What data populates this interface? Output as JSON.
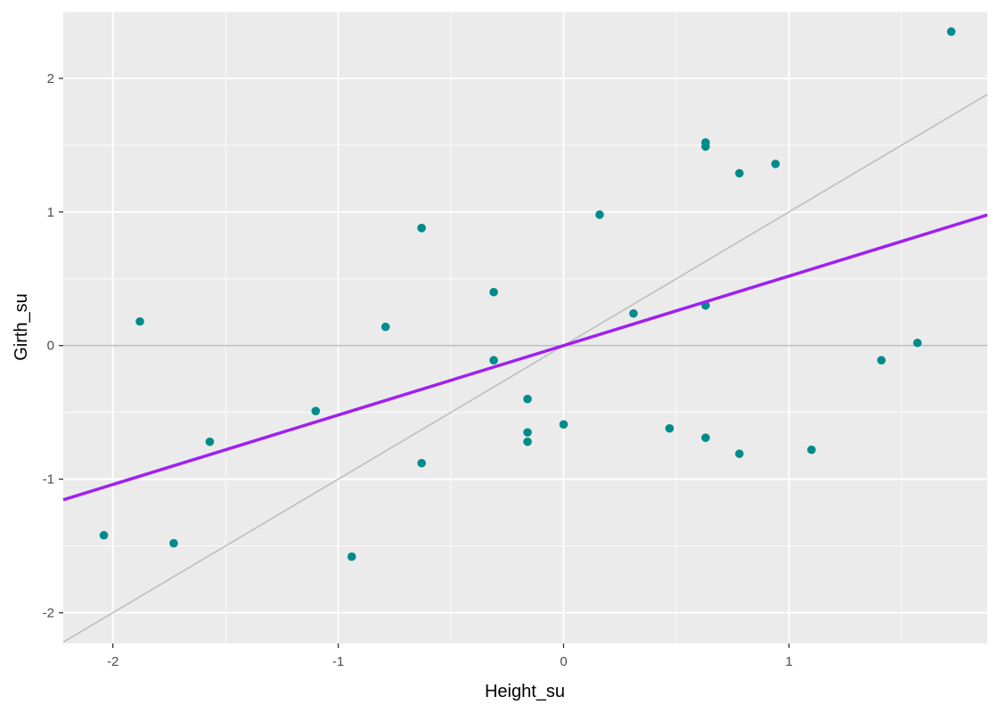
{
  "chart_data": {
    "type": "scatter",
    "xlabel": "Height_su",
    "ylabel": "Girth_su",
    "xlim": [
      -2.22,
      1.88
    ],
    "ylim": [
      -2.23,
      2.5
    ],
    "x_ticks": [
      -2,
      -1,
      0,
      1
    ],
    "x_tick_labels": [
      "-2",
      "-1",
      "0",
      "1"
    ],
    "y_ticks": [
      -2,
      -1,
      0,
      1,
      2
    ],
    "y_tick_labels": [
      "-2",
      "-1",
      "0",
      "1",
      "2"
    ],
    "grid": true,
    "points": [
      {
        "x": -2.04,
        "y": -1.42
      },
      {
        "x": -1.88,
        "y": 0.18
      },
      {
        "x": -1.73,
        "y": -1.48
      },
      {
        "x": -1.57,
        "y": -0.72
      },
      {
        "x": -1.1,
        "y": -0.49
      },
      {
        "x": -0.94,
        "y": -1.58
      },
      {
        "x": -0.79,
        "y": 0.14
      },
      {
        "x": -0.63,
        "y": 0.88
      },
      {
        "x": -0.63,
        "y": -0.88
      },
      {
        "x": -0.31,
        "y": 0.4
      },
      {
        "x": -0.31,
        "y": -0.11
      },
      {
        "x": -0.16,
        "y": -0.4
      },
      {
        "x": -0.16,
        "y": -0.65
      },
      {
        "x": -0.16,
        "y": -0.72
      },
      {
        "x": 0.0,
        "y": -0.59
      },
      {
        "x": 0.16,
        "y": 0.98
      },
      {
        "x": 0.31,
        "y": 0.24
      },
      {
        "x": 0.47,
        "y": -0.62
      },
      {
        "x": 0.63,
        "y": 1.52
      },
      {
        "x": 0.63,
        "y": 1.49
      },
      {
        "x": 0.63,
        "y": 0.3
      },
      {
        "x": 0.63,
        "y": -0.69
      },
      {
        "x": 0.78,
        "y": 1.29
      },
      {
        "x": 0.78,
        "y": -0.81
      },
      {
        "x": 0.94,
        "y": 1.36
      },
      {
        "x": 1.1,
        "y": -0.78
      },
      {
        "x": 1.41,
        "y": -0.11
      },
      {
        "x": 1.57,
        "y": 0.02
      },
      {
        "x": 1.72,
        "y": 2.35
      }
    ],
    "regression_line": {
      "intercept": 0.0,
      "slope": 0.52
    },
    "identity_line": {
      "intercept": 0.0,
      "slope": 1.0
    },
    "reference_hline_y": 0,
    "colors": {
      "panel": "#ebebeb",
      "grid": "#ffffff",
      "point": "#008b8b",
      "regression": "#a020f0",
      "reference": "#bebebe"
    }
  }
}
